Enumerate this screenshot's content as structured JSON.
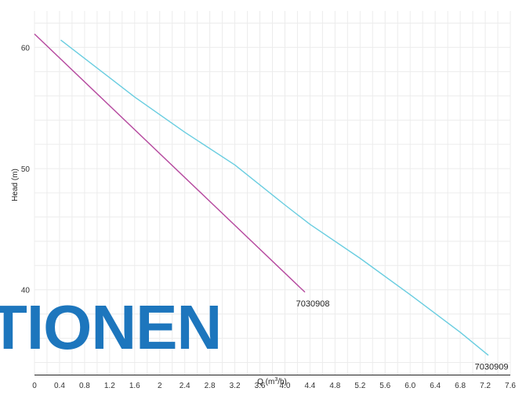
{
  "chart_data": {
    "type": "line",
    "title": "",
    "xlabel_base": "Q (m",
    "xlabel_sup": "3",
    "xlabel_tail": "/h)",
    "ylabel": "Head (m)",
    "xlim": [
      0,
      7.6
    ],
    "ylim": [
      33,
      63
    ],
    "x_ticks": [
      "0",
      "0.4",
      "0.8",
      "1.2",
      "1.6",
      "2",
      "2.4",
      "2.8",
      "3.2",
      "3.6",
      "4.0",
      "4.4",
      "4.8",
      "5.2",
      "5.6",
      "6.0",
      "6.4",
      "6.8",
      "7.2",
      "7.6"
    ],
    "x_tick_values": [
      0,
      0.4,
      0.8,
      1.2,
      1.6,
      2,
      2.4,
      2.8,
      3.2,
      3.6,
      4.0,
      4.4,
      4.8,
      5.2,
      5.6,
      6.0,
      6.4,
      6.8,
      7.2,
      7.6
    ],
    "y_ticks": [
      "40",
      "50",
      "60"
    ],
    "y_tick_values": [
      40,
      50,
      60
    ],
    "grid": true,
    "series": [
      {
        "name": "7030908",
        "color": "#b5489e",
        "points": [
          [
            0,
            61.1
          ],
          [
            4.32,
            39.8
          ]
        ]
      },
      {
        "name": "7030909",
        "color": "#69cde0",
        "points": [
          [
            0.42,
            60.6
          ],
          [
            1.2,
            57.5
          ],
          [
            1.6,
            55.9
          ],
          [
            2.4,
            53.0
          ],
          [
            3.2,
            50.3
          ],
          [
            4.0,
            47.0
          ],
          [
            4.4,
            45.4
          ],
          [
            5.2,
            42.6
          ],
          [
            6.0,
            39.6
          ],
          [
            6.8,
            36.5
          ],
          [
            7.25,
            34.6
          ]
        ]
      }
    ]
  },
  "watermark": {
    "text": "TIONEN",
    "color": "#1d76bd"
  }
}
